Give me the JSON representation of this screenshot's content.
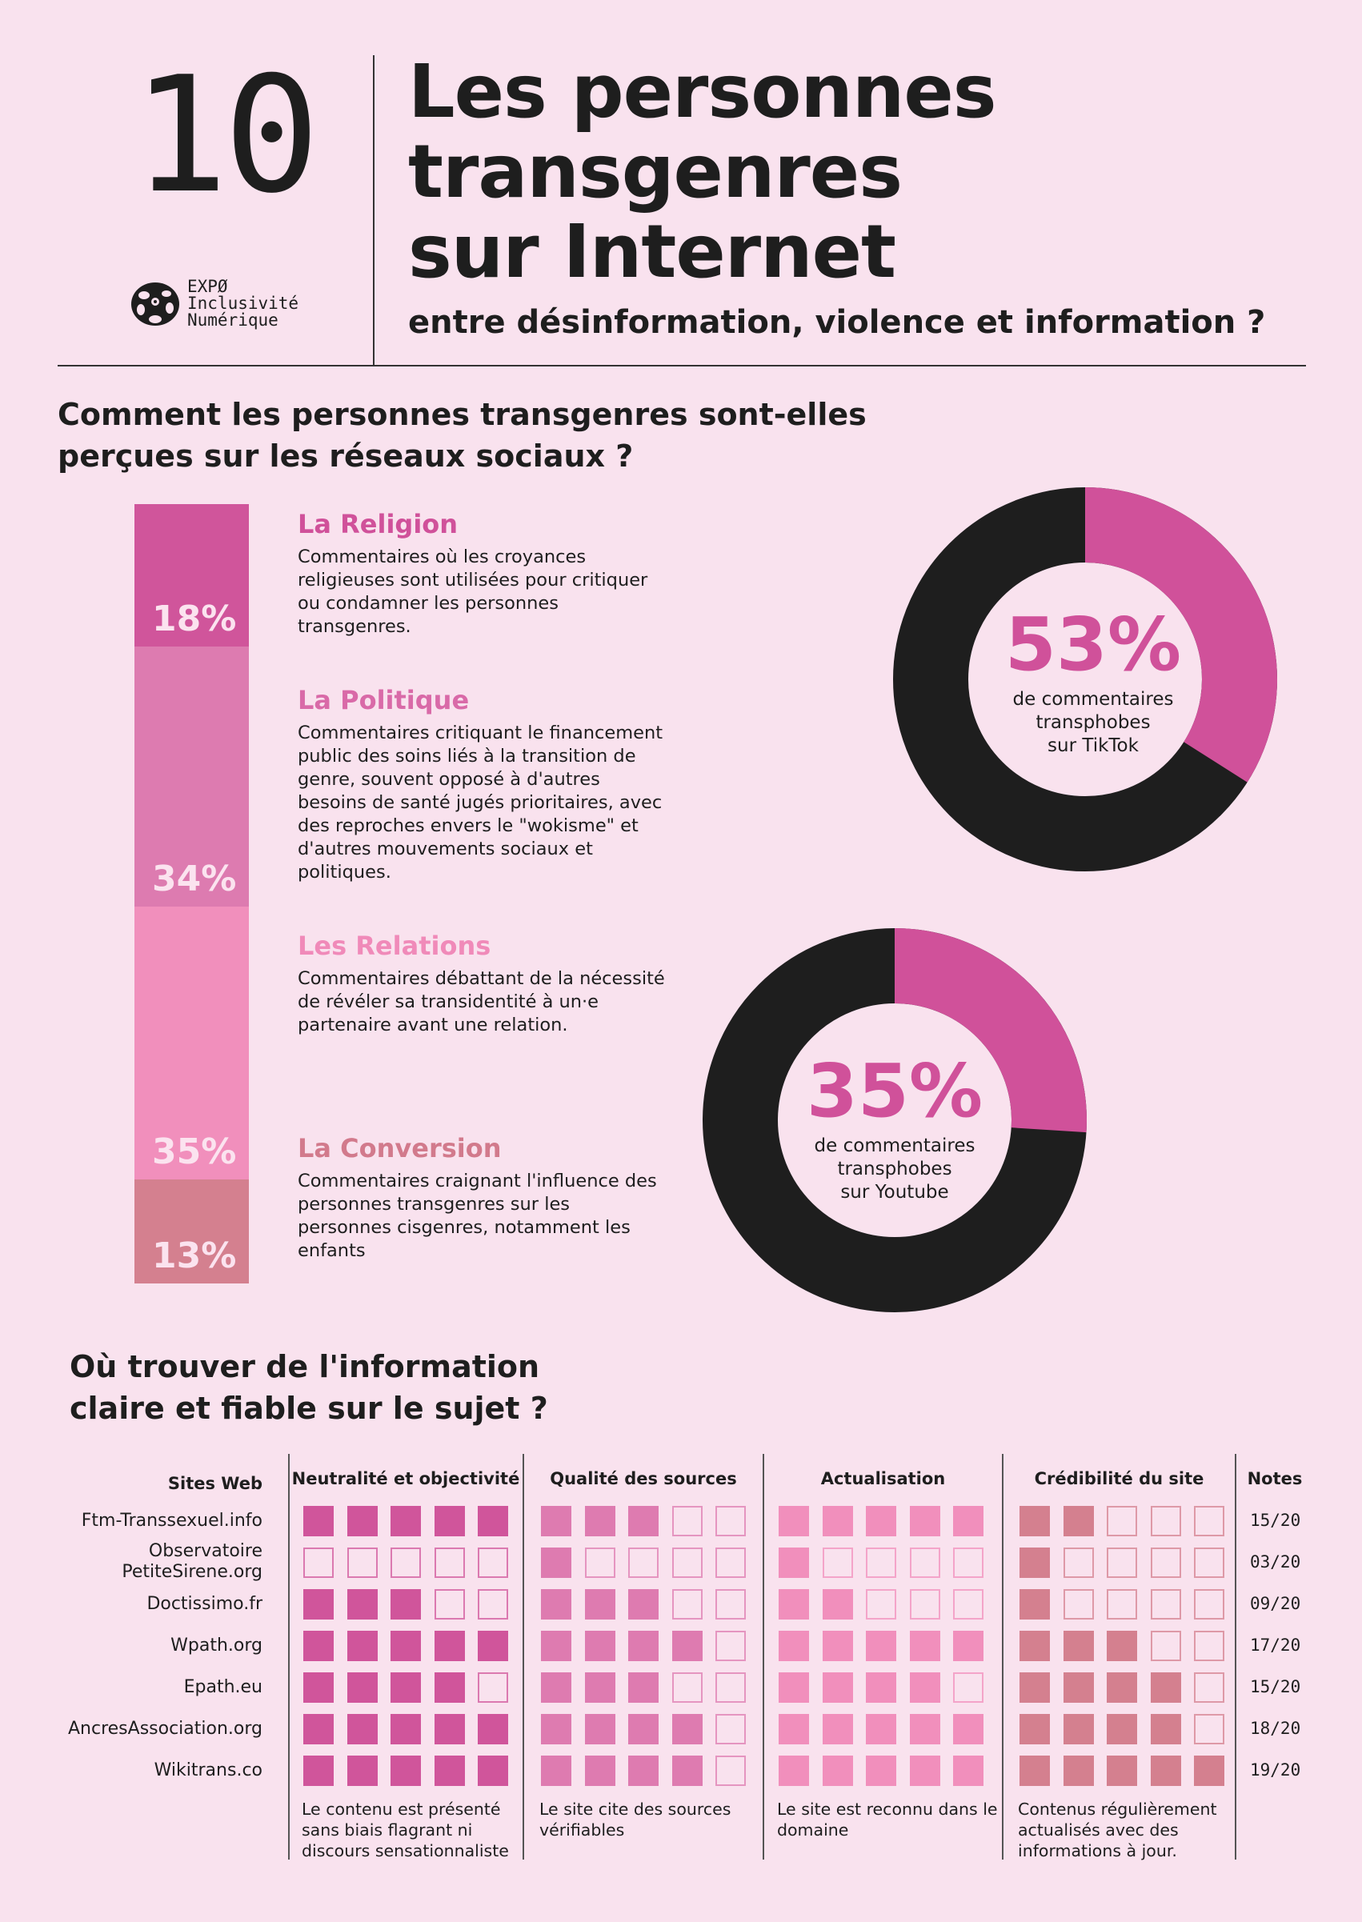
{
  "header": {
    "number": "10",
    "title_lines": [
      "Les personnes",
      "transgenres",
      "sur Internet"
    ],
    "subtitle": "entre désinformation, violence et information ?",
    "logo": {
      "icon": "flower-logo-icon",
      "lines": [
        "EXPØ",
        "Inclusivité",
        "Numérique"
      ]
    }
  },
  "section1": {
    "heading_lines": [
      "Comment les personnes transgenres sont-elles",
      "perçues sur les réseaux sociaux ?"
    ],
    "categories": [
      {
        "label": "18%",
        "value": 18,
        "title": "La Religion",
        "color": "#d0559b",
        "title_color": "#d0519a",
        "text": "Commentaires où les croyances religieuses sont utilisées pour critiquer ou condamner les personnes transgenres."
      },
      {
        "label": "34%",
        "value": 34,
        "title": "La Politique",
        "color": "#dd7bb0",
        "title_color": "#d96aa8",
        "text": "Commentaires critiquant le financement public des soins liés à la transition de genre, souvent opposé à d'autres besoins de santé jugés prioritaires, avec des reproches envers le \"wokisme\" et d'autres mouvements sociaux et politiques."
      },
      {
        "label": "35%",
        "value": 35,
        "title": "Les Relations",
        "color": "#f18fbc",
        "title_color": "#f08ab9",
        "text": "Commentaires débattant de la nécessité de révéler sa transidentité à un·e partenaire avant une relation."
      },
      {
        "label": "13%",
        "value": 13,
        "title": "La Conversion",
        "color": "#d4808f",
        "title_color": "#d27a8c",
        "text": "Commentaires craignant l'influence des personnes transgenres sur les personnes cisgenres, notamment les enfants"
      }
    ],
    "donuts": [
      {
        "value": "53%",
        "lines": [
          "de commentaires",
          "transphobes",
          "sur TikTok"
        ],
        "pink_share": 0.34
      },
      {
        "value": "35%",
        "lines": [
          "de commentaires",
          "transphobes",
          "sur Youtube"
        ],
        "pink_share": 0.26
      }
    ],
    "colors": {
      "pink": "#d0519a",
      "dark": "#1e1e1e"
    }
  },
  "section2": {
    "heading_lines": [
      "Où trouver de l'information",
      "claire et fiable sur le sujet ?"
    ],
    "sites_header": "Sites Web",
    "notes_header": "Notes",
    "criteria": [
      {
        "name": "Neutralité et objectivité",
        "color": "#d0559b",
        "description": "Le contenu est présenté sans biais flagrant ni discours sensationnaliste"
      },
      {
        "name": "Qualité des sources",
        "color": "#de7bb0",
        "description": "Le site cite des sources vérifiables"
      },
      {
        "name": "Actualisation",
        "color": "#f18fbc",
        "description": "Le site est reconnu dans le domaine"
      },
      {
        "name": "Crédibilité du site",
        "color": "#d4808f",
        "description": "Contenus régulièrement actualisés avec des informations à jour."
      }
    ],
    "sites": [
      {
        "name": "Ftm-Transsexuel.info",
        "scores": [
          5,
          3,
          5,
          2
        ],
        "note": "15/20"
      },
      {
        "name": "Observatoire\nPetiteSirene.org",
        "scores": [
          0,
          1,
          1,
          1
        ],
        "note": "03/20"
      },
      {
        "name": "Doctissimo.fr",
        "scores": [
          3,
          3,
          2,
          1
        ],
        "note": "09/20"
      },
      {
        "name": "Wpath.org",
        "scores": [
          5,
          4,
          5,
          3
        ],
        "note": "17/20"
      },
      {
        "name": "Epath.eu",
        "scores": [
          4,
          3,
          4,
          4
        ],
        "note": "15/20"
      },
      {
        "name": "AncresAssociation.org",
        "scores": [
          5,
          4,
          5,
          4
        ],
        "note": "18/20"
      },
      {
        "name": "Wikitrans.co",
        "scores": [
          5,
          4,
          5,
          5
        ],
        "note": "19/20"
      }
    ],
    "max_score": 5
  }
}
